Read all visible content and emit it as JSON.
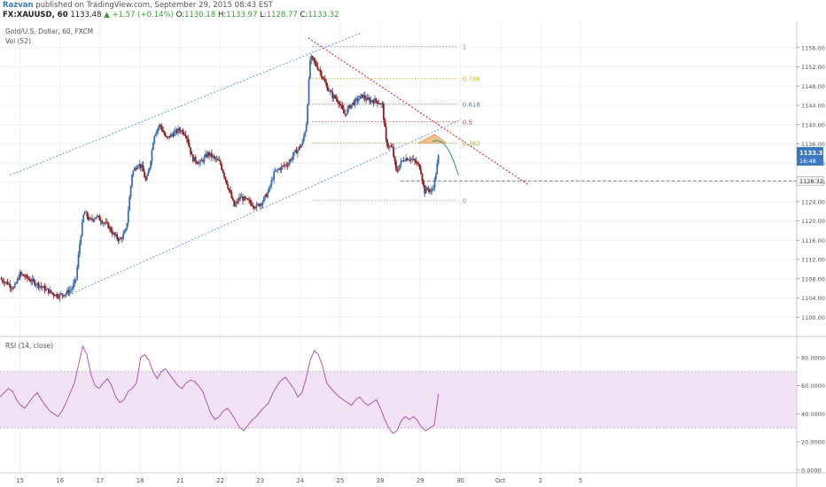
{
  "header": {
    "author": "Razvan",
    "published": "published on TradingView.com, September 29, 2015 08:43 EST",
    "symbol": "FX:XAUUSD, 60",
    "last": "1133.48",
    "change": "+1.57 (+0.14%)",
    "o_label": "O:",
    "o_value": "1130.18",
    "h_label": "H:",
    "h_value": "1133.97",
    "l_label": "L:",
    "l_value": "1128.77",
    "c_label": "C:",
    "c_value": "1133.32"
  },
  "colors": {
    "up": "#3d6fb0",
    "down": "#8a1c1c",
    "channel": "#5b8fd6",
    "trend": "#e0242c",
    "rsi": "#a64aa8",
    "rsi_band": "#f1e2f6",
    "projection": "#3aa17a",
    "triangle": "#f0a868",
    "price_badge": "#3c78c2"
  },
  "chart_data": [
    {
      "type": "candlestick",
      "title": "Gold/U.S. Dollar, 60, FXCM",
      "subtitle": "Vol (52)",
      "ylim": [
        1096,
        1160
      ],
      "yticks": [
        "1156.00",
        "1152.00",
        "1148.00",
        "1144.00",
        "1140.00",
        "1136.00",
        "1132.00",
        "1128.00",
        "1124.00",
        "1120.00",
        "1116.00",
        "1112.00",
        "1108.00",
        "1104.00",
        "1100.00"
      ],
      "xlim": [
        14.5,
        34.4
      ],
      "xticks": [
        {
          "x": 15,
          "label": "15"
        },
        {
          "x": 16,
          "label": "16"
        },
        {
          "x": 17,
          "label": "17"
        },
        {
          "x": 18,
          "label": "18"
        },
        {
          "x": 19,
          "label": "21"
        },
        {
          "x": 20,
          "label": "22"
        },
        {
          "x": 21,
          "label": "23"
        },
        {
          "x": 22,
          "label": "24"
        },
        {
          "x": 23,
          "label": "25"
        },
        {
          "x": 24,
          "label": "28"
        },
        {
          "x": 25,
          "label": "29"
        },
        {
          "x": 26,
          "label": "30"
        },
        {
          "x": 27,
          "label": "Oct"
        },
        {
          "x": 28,
          "label": "2"
        },
        {
          "x": 29,
          "label": "5"
        }
      ],
      "price_path": [
        [
          14.5,
          1108
        ],
        [
          14.7,
          1107
        ],
        [
          14.85,
          1106
        ],
        [
          15.0,
          1109
        ],
        [
          15.2,
          1108
        ],
        [
          15.4,
          1107
        ],
        [
          15.6,
          1106
        ],
        [
          15.8,
          1105
        ],
        [
          15.95,
          1104.5
        ],
        [
          16.15,
          1105
        ],
        [
          16.3,
          1106
        ],
        [
          16.4,
          1108
        ],
        [
          16.5,
          1116
        ],
        [
          16.6,
          1122
        ],
        [
          16.75,
          1120
        ],
        [
          16.9,
          1121
        ],
        [
          17.05,
          1120
        ],
        [
          17.2,
          1119
        ],
        [
          17.35,
          1117
        ],
        [
          17.5,
          1116
        ],
        [
          17.65,
          1118
        ],
        [
          17.8,
          1130
        ],
        [
          17.95,
          1132
        ],
        [
          18.05,
          1131
        ],
        [
          18.15,
          1128
        ],
        [
          18.25,
          1132
        ],
        [
          18.35,
          1138
        ],
        [
          18.5,
          1140
        ],
        [
          18.65,
          1137
        ],
        [
          18.8,
          1138
        ],
        [
          19.0,
          1139
        ],
        [
          19.15,
          1138
        ],
        [
          19.3,
          1133
        ],
        [
          19.5,
          1132
        ],
        [
          19.7,
          1134
        ],
        [
          19.85,
          1133
        ],
        [
          20.0,
          1132
        ],
        [
          20.2,
          1127
        ],
        [
          20.35,
          1123
        ],
        [
          20.5,
          1125
        ],
        [
          20.7,
          1124
        ],
        [
          20.9,
          1123
        ],
        [
          21.05,
          1124
        ],
        [
          21.2,
          1126
        ],
        [
          21.35,
          1130
        ],
        [
          21.5,
          1131
        ],
        [
          21.7,
          1132
        ],
        [
          21.85,
          1134
        ],
        [
          22.05,
          1136
        ],
        [
          22.15,
          1140
        ],
        [
          22.25,
          1154
        ],
        [
          22.35,
          1153
        ],
        [
          22.5,
          1151
        ],
        [
          22.65,
          1148
        ],
        [
          22.8,
          1146
        ],
        [
          22.95,
          1145
        ],
        [
          23.1,
          1142
        ],
        [
          23.25,
          1144
        ],
        [
          23.4,
          1145
        ],
        [
          23.55,
          1146
        ],
        [
          23.7,
          1145
        ],
        [
          23.9,
          1145
        ],
        [
          24.05,
          1144
        ],
        [
          24.15,
          1136
        ],
        [
          24.3,
          1135
        ],
        [
          24.4,
          1130
        ],
        [
          24.5,
          1132
        ],
        [
          24.6,
          1133
        ],
        [
          24.75,
          1133
        ],
        [
          24.9,
          1132
        ],
        [
          25.0,
          1131
        ],
        [
          25.1,
          1126
        ],
        [
          25.2,
          1127
        ],
        [
          25.25,
          1125.5
        ],
        [
          25.35,
          1128
        ],
        [
          25.45,
          1133.3
        ]
      ],
      "last_price": "1133.32",
      "countdown": "16:48",
      "level_price": "1128.32",
      "fib_levels": [
        {
          "ratio": "1",
          "price": 1156.2
        },
        {
          "ratio": "0.786",
          "price": 1149.6
        },
        {
          "ratio": "0.618",
          "price": 1144.3
        },
        {
          "ratio": "0.5",
          "price": 1140.6
        },
        {
          "ratio": "0.382",
          "price": 1136.2
        },
        {
          "ratio": "0",
          "price": 1124.3
        }
      ],
      "channel_upper": [
        [
          14.75,
          1129.5
        ],
        [
          23.5,
          1159
        ]
      ],
      "channel_lower": [
        [
          16.05,
          1104
        ],
        [
          26.0,
          1141
        ]
      ],
      "trendline": [
        [
          22.2,
          1158
        ],
        [
          27.7,
          1127.5
        ]
      ],
      "projection": [
        [
          25.3,
          1136.5
        ],
        [
          25.55,
          1137.5
        ],
        [
          25.75,
          1135
        ],
        [
          25.95,
          1129.5
        ]
      ],
      "triangle": [
        [
          24.95,
          1136.2
        ],
        [
          25.35,
          1138.0
        ],
        [
          25.65,
          1136.2
        ]
      ]
    },
    {
      "type": "line",
      "title": "RSI (14, close)",
      "ylim": [
        -2,
        95
      ],
      "yticks": [
        "80.0000",
        "60.0000",
        "40.0000",
        "20.0000",
        "0.0000"
      ],
      "band": [
        30,
        70
      ],
      "series": [
        {
          "values": [
            52,
            55,
            58,
            56,
            50,
            46,
            44,
            48,
            52,
            55,
            50,
            46,
            42,
            40,
            38,
            42,
            48,
            55,
            62,
            75,
            88,
            82,
            68,
            60,
            58,
            62,
            65,
            60,
            52,
            48,
            50,
            56,
            58,
            62,
            80,
            82,
            78,
            70,
            65,
            70,
            72,
            68,
            64,
            60,
            58,
            62,
            64,
            63,
            60,
            56,
            48,
            40,
            36,
            38,
            42,
            44,
            40,
            35,
            30,
            28,
            32,
            36,
            38,
            42,
            45,
            48,
            55,
            60,
            64,
            66,
            62,
            58,
            52,
            55,
            65,
            78,
            85,
            82,
            74,
            62,
            58,
            55,
            52,
            50,
            48,
            46,
            50,
            52,
            48,
            46,
            48,
            50,
            44,
            36,
            30,
            26,
            28,
            35,
            38,
            36,
            38,
            35,
            30,
            28,
            30,
            32,
            54
          ]
        }
      ]
    }
  ]
}
